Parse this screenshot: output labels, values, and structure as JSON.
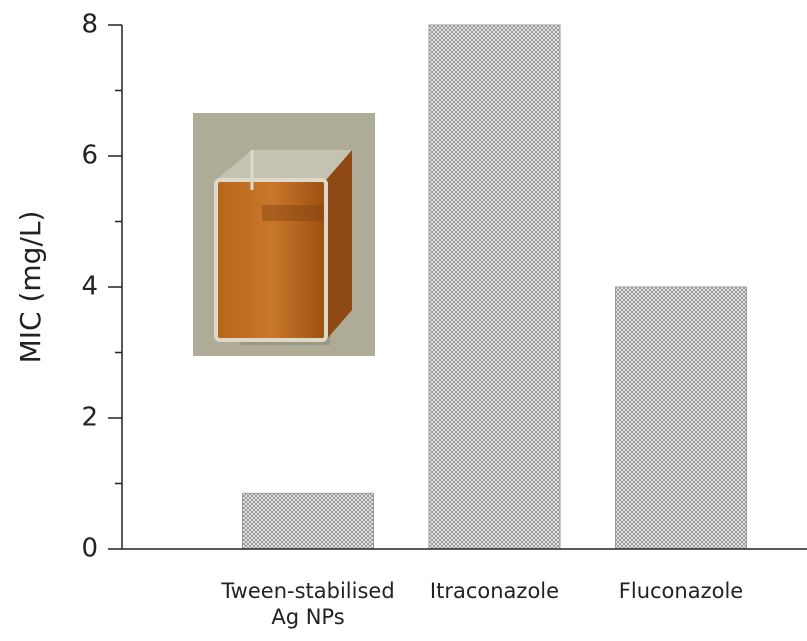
{
  "chart_data": {
    "type": "bar",
    "y_label": "MIC (mg/L)",
    "categories": [
      "Tween-stabilised Ag NPs",
      "Itraconazole",
      "Fluconazole"
    ],
    "values": [
      0.85,
      8,
      4
    ],
    "color": "#9a9a9a",
    "ylim": [
      0,
      8
    ],
    "yticks": [
      0,
      2,
      4,
      6,
      8
    ],
    "minor_yticks": [
      1,
      3,
      5,
      7
    ]
  }
}
